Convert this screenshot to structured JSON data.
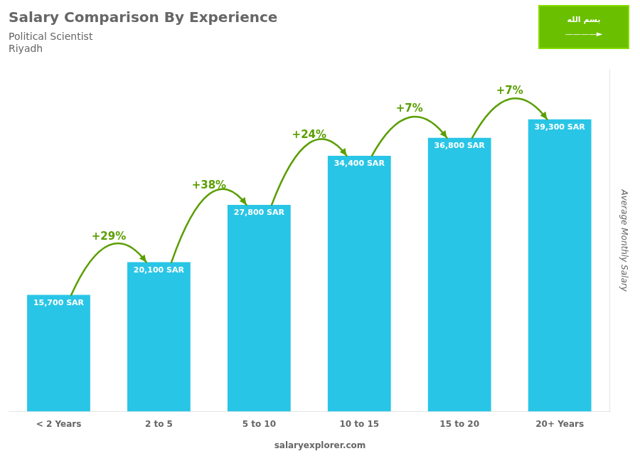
{
  "chart_data": {
    "type": "bar",
    "title": "Salary Comparison By Experience",
    "subtitle": [
      "Political Scientist",
      "Riyadh"
    ],
    "y_label": "Average Monthly Salary",
    "categories": [
      "< 2 Years",
      "2 to 5",
      "5 to 10",
      "10 to 15",
      "15 to 20",
      "20+ Years"
    ],
    "values": [
      15700,
      20100,
      27800,
      34400,
      36800,
      39300
    ],
    "value_labels": [
      "15,700 SAR",
      "20,100 SAR",
      "27,800 SAR",
      "34,400 SAR",
      "36,800 SAR",
      "39,300 SAR"
    ],
    "data_labels": true,
    "color": "#29c5e6",
    "ylim": [
      0,
      46000
    ],
    "tick_labels": "x",
    "grid": false,
    "annotations": [
      "+29%",
      "+38%",
      "+24%",
      "+7%",
      "+7%"
    ],
    "footer": "salaryexplorer.com",
    "flag_text": [
      "بسم الله",
      "————►"
    ]
  }
}
